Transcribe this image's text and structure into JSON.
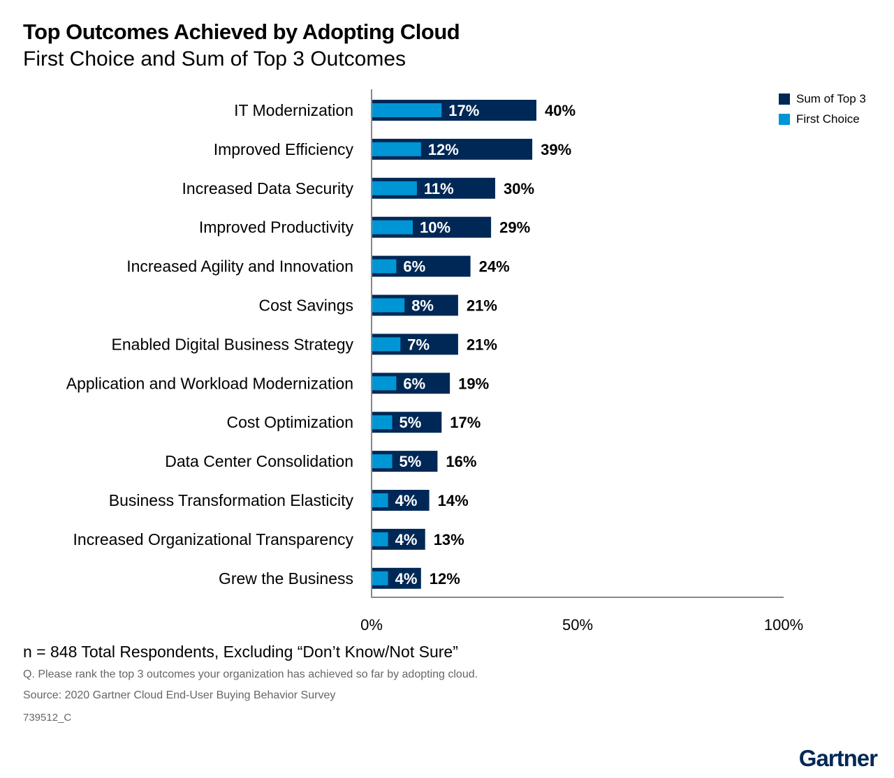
{
  "title": "Top Outcomes Achieved by Adopting Cloud",
  "subtitle": "First Choice and Sum of Top 3 Outcomes",
  "footer": {
    "note": "n = 848 Total Respondents, Excluding “Don’t Know/Not Sure”",
    "question": "Q. Please rank the top 3 outcomes your organization has achieved so far by adopting cloud.",
    "source": "Source: 2020 Gartner Cloud End-User Buying Behavior Survey",
    "id": "739512_C",
    "logo": "Gartner"
  },
  "colors": {
    "sum_top3": "#002856",
    "first_choice": "#0096d6"
  },
  "chart_data": {
    "type": "bar",
    "orientation": "horizontal",
    "title": "Top Outcomes Achieved by Adopting Cloud",
    "subtitle": "First Choice and Sum of Top 3 Outcomes",
    "categories": [
      "IT Modernization",
      "Improved Efficiency",
      "Increased Data Security",
      "Improved Productivity",
      "Increased Agility and Innovation",
      "Cost Savings",
      "Enabled Digital Business Strategy",
      "Application and Workload Modernization",
      "Cost Optimization",
      "Data Center Consolidation",
      "Business Transformation Elasticity",
      "Increased Organizational Transparency",
      "Grew the Business"
    ],
    "series": [
      {
        "name": "Sum of Top 3",
        "values": [
          40,
          39,
          30,
          29,
          24,
          21,
          21,
          19,
          17,
          16,
          14,
          13,
          12
        ]
      },
      {
        "name": "First Choice",
        "values": [
          17,
          12,
          11,
          10,
          6,
          8,
          7,
          6,
          5,
          5,
          4,
          4,
          4
        ]
      }
    ],
    "xlim": [
      0,
      100
    ],
    "xticks": [
      "0%",
      "50%",
      "100%"
    ],
    "legend": "top-right",
    "grid": false
  }
}
